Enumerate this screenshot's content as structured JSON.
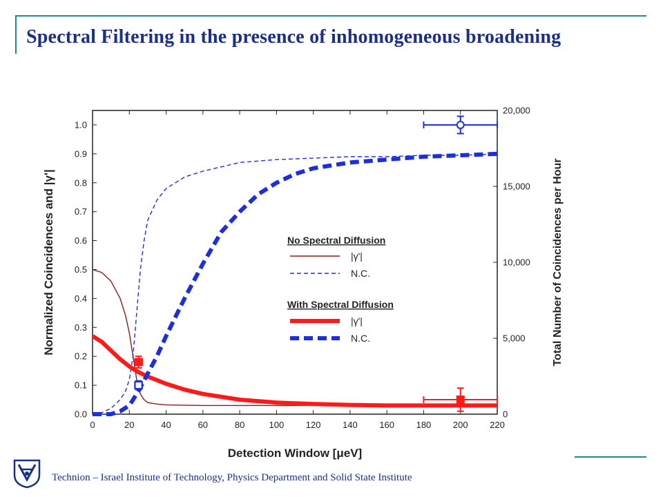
{
  "slide": {
    "title": "Spectral Filtering in the presence of inhomogeneous  broadening",
    "footer": "Technion – Israel Institute of Technology, Physics Department and Solid State Institute"
  },
  "colors": {
    "title": "#1a2f86",
    "accent_line": "#1f8a8a",
    "red_series": "#ff1a1a",
    "blue_series": "#1c2fe0",
    "thin_red_series": "#8b1a1a"
  },
  "chart_data": {
    "type": "line",
    "xlabel": "Detection Window [μeV]",
    "ylabel": "Normalized Coincidences and |γ'|",
    "ylabel2": "Total Number of Coincidences per Hour",
    "xlim": [
      0,
      220
    ],
    "ylim": [
      0,
      1.05
    ],
    "ylim2": [
      0,
      20000
    ],
    "xticks": [
      0,
      20,
      40,
      60,
      80,
      100,
      120,
      140,
      160,
      180,
      200,
      220
    ],
    "yticks": [
      0.0,
      0.1,
      0.2,
      0.3,
      0.4,
      0.5,
      0.6,
      0.7,
      0.8,
      0.9,
      1.0
    ],
    "yticks2": [
      0,
      5000,
      10000,
      15000,
      20000
    ],
    "ytick_labels2": [
      "0",
      "5,000",
      "10,000",
      "15,000",
      "20,000"
    ],
    "legend": {
      "groups": [
        {
          "heading": "No Spectral Diffusion",
          "entries": [
            {
              "label": "|γ'|",
              "series": 0
            },
            {
              "label": "N.C.",
              "series": 1
            }
          ]
        },
        {
          "heading": "With Spectral Diffusion",
          "entries": [
            {
              "label": "|γ'|",
              "series": 2
            },
            {
              "label": "N.C.",
              "series": 3
            }
          ]
        }
      ]
    },
    "series": [
      {
        "style": "thin-solid",
        "color": "#8b1a1a",
        "x": [
          0,
          5,
          10,
          15,
          18,
          20,
          22,
          24,
          26,
          28,
          30,
          35,
          40,
          60,
          80,
          100,
          140,
          180,
          220
        ],
        "y": [
          0.5,
          0.49,
          0.46,
          0.4,
          0.34,
          0.28,
          0.2,
          0.12,
          0.07,
          0.05,
          0.04,
          0.035,
          0.032,
          0.03,
          0.03,
          0.03,
          0.03,
          0.03,
          0.03
        ]
      },
      {
        "style": "thin-dashed",
        "color": "#1c2fe0",
        "x": [
          0,
          5,
          10,
          15,
          18,
          20,
          22,
          24,
          26,
          28,
          30,
          35,
          40,
          50,
          60,
          80,
          100,
          120,
          140,
          160,
          180,
          200,
          220
        ],
        "y": [
          0.0,
          0.005,
          0.02,
          0.05,
          0.08,
          0.12,
          0.2,
          0.35,
          0.5,
          0.6,
          0.67,
          0.74,
          0.78,
          0.82,
          0.84,
          0.87,
          0.88,
          0.885,
          0.89,
          0.89,
          0.895,
          0.895,
          0.9
        ]
      },
      {
        "style": "thick-solid",
        "color": "#ff1a1a",
        "x": [
          0,
          5,
          10,
          15,
          20,
          25,
          30,
          40,
          50,
          60,
          80,
          100,
          120,
          140,
          160,
          180,
          200,
          220
        ],
        "y": [
          0.27,
          0.25,
          0.22,
          0.19,
          0.165,
          0.145,
          0.13,
          0.105,
          0.085,
          0.07,
          0.05,
          0.04,
          0.035,
          0.032,
          0.03,
          0.03,
          0.03,
          0.03
        ]
      },
      {
        "style": "thick-dashed",
        "color": "#1c2fe0",
        "x": [
          0,
          10,
          15,
          20,
          25,
          30,
          35,
          40,
          50,
          60,
          70,
          80,
          90,
          100,
          110,
          120,
          140,
          160,
          180,
          200,
          220
        ],
        "y": [
          0.0,
          0.0,
          0.01,
          0.03,
          0.08,
          0.14,
          0.2,
          0.27,
          0.4,
          0.52,
          0.63,
          0.7,
          0.76,
          0.8,
          0.83,
          0.85,
          0.87,
          0.88,
          0.89,
          0.895,
          0.9
        ]
      }
    ],
    "error_points": [
      {
        "color": "#ff1a1a",
        "marker": "square-filled",
        "x": 25,
        "y": 0.18,
        "xerr": 2,
        "yerr": 0.02
      },
      {
        "color": "#1c2fe0",
        "marker": "square-open",
        "x": 25,
        "y": 0.1,
        "xerr": 2,
        "yerr": 0.015
      },
      {
        "color": "#ff1a1a",
        "marker": "square-filled",
        "x": 200,
        "y": 0.05,
        "xerr": 20,
        "yerr": 0.04
      },
      {
        "color": "#1c2fe0",
        "marker": "circle-open",
        "x": 200,
        "y": 1.0,
        "xerr": 20,
        "yerr": 0.03
      }
    ]
  }
}
